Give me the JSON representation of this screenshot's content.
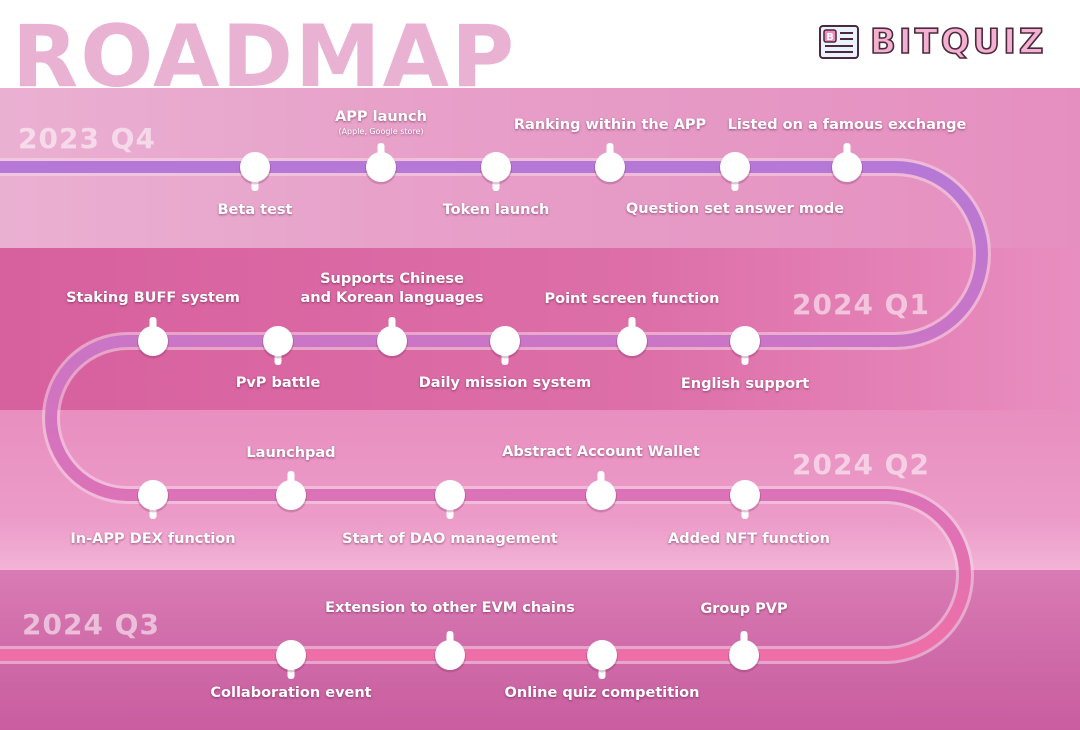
{
  "header": {
    "title": "ROADMAP",
    "logo_text": "BITQUIZ",
    "logo_icon": "quiz-paper-icon"
  },
  "quarters": [
    {
      "label": "2023 Q4"
    },
    {
      "label": "2024 Q1"
    },
    {
      "label": "2024 Q2"
    },
    {
      "label": "2024 Q3"
    }
  ],
  "milestones": [
    {
      "label": "Beta test"
    },
    {
      "label": "APP launch",
      "sublabel": "(Apple, Google store)"
    },
    {
      "label": "Token launch"
    },
    {
      "label": "Ranking within the APP"
    },
    {
      "label": "Question set answer mode"
    },
    {
      "label": "Listed on a famous exchange"
    },
    {
      "label": "Staking BUFF system"
    },
    {
      "label": "PvP battle"
    },
    {
      "label": "Supports Chinese",
      "label2": "and Korean languages"
    },
    {
      "label": "Daily mission system"
    },
    {
      "label": "Point screen function"
    },
    {
      "label": "English support"
    },
    {
      "label": "In-APP DEX function"
    },
    {
      "label": "Launchpad"
    },
    {
      "label": "Start of DAO management"
    },
    {
      "label": "Abstract Account Wallet"
    },
    {
      "label": "Added NFT function"
    },
    {
      "label": "Collaboration event"
    },
    {
      "label": "Extension to other EVM chains"
    },
    {
      "label": "Online quiz competition"
    },
    {
      "label": "Group PVP"
    }
  ],
  "colors": {
    "path_top": "#b678d6",
    "path_bottom": "#ee6fa8",
    "node": "#ffffff"
  }
}
